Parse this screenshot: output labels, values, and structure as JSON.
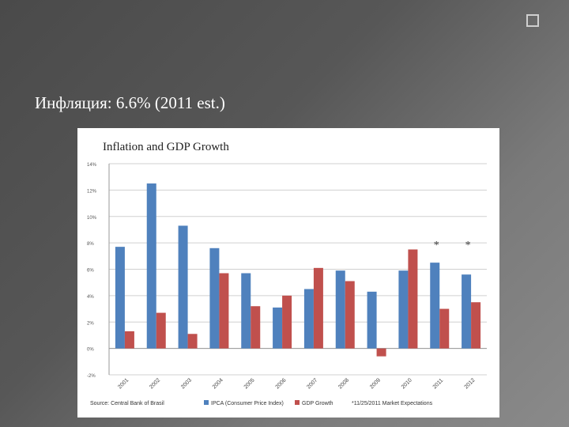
{
  "slide": {
    "text": "Инфляция: 6.6% (2011 est.)",
    "icon": "square-bullet-icon"
  },
  "chart_data": {
    "type": "bar",
    "title": "Inflation and GDP Growth",
    "xlabel": "",
    "ylabel": "",
    "categories": [
      "2001",
      "2002",
      "2003",
      "2004",
      "2005",
      "2006",
      "2007",
      "2008",
      "2009",
      "2010",
      "2011",
      "2012"
    ],
    "series": [
      {
        "name": "IPCA (Consumer Price Index)",
        "color": "#4f81bd",
        "values": [
          7.7,
          12.5,
          9.3,
          7.6,
          5.7,
          3.1,
          4.5,
          5.9,
          4.3,
          5.9,
          6.5,
          5.6
        ]
      },
      {
        "name": "GDP Growth",
        "color": "#c0504d",
        "values": [
          1.3,
          2.7,
          1.1,
          5.7,
          3.2,
          4.0,
          6.1,
          5.1,
          -0.6,
          7.5,
          3.0,
          3.5
        ]
      }
    ],
    "ylim": [
      -2,
      14
    ],
    "yticks": [
      "-2%",
      "0%",
      "2%",
      "4%",
      "6%",
      "8%",
      "10%",
      "12%",
      "14%"
    ],
    "ytick_values": [
      -2,
      0,
      2,
      4,
      6,
      8,
      10,
      12,
      14
    ],
    "annotations": [
      {
        "category": "2011",
        "text": "*"
      },
      {
        "category": "2012",
        "text": "*"
      }
    ],
    "source": "Source: Central Bank of Brasil",
    "legend_note": "*11/25/2011 Market Expectations",
    "legend_placement": "bottom",
    "grid": true
  }
}
